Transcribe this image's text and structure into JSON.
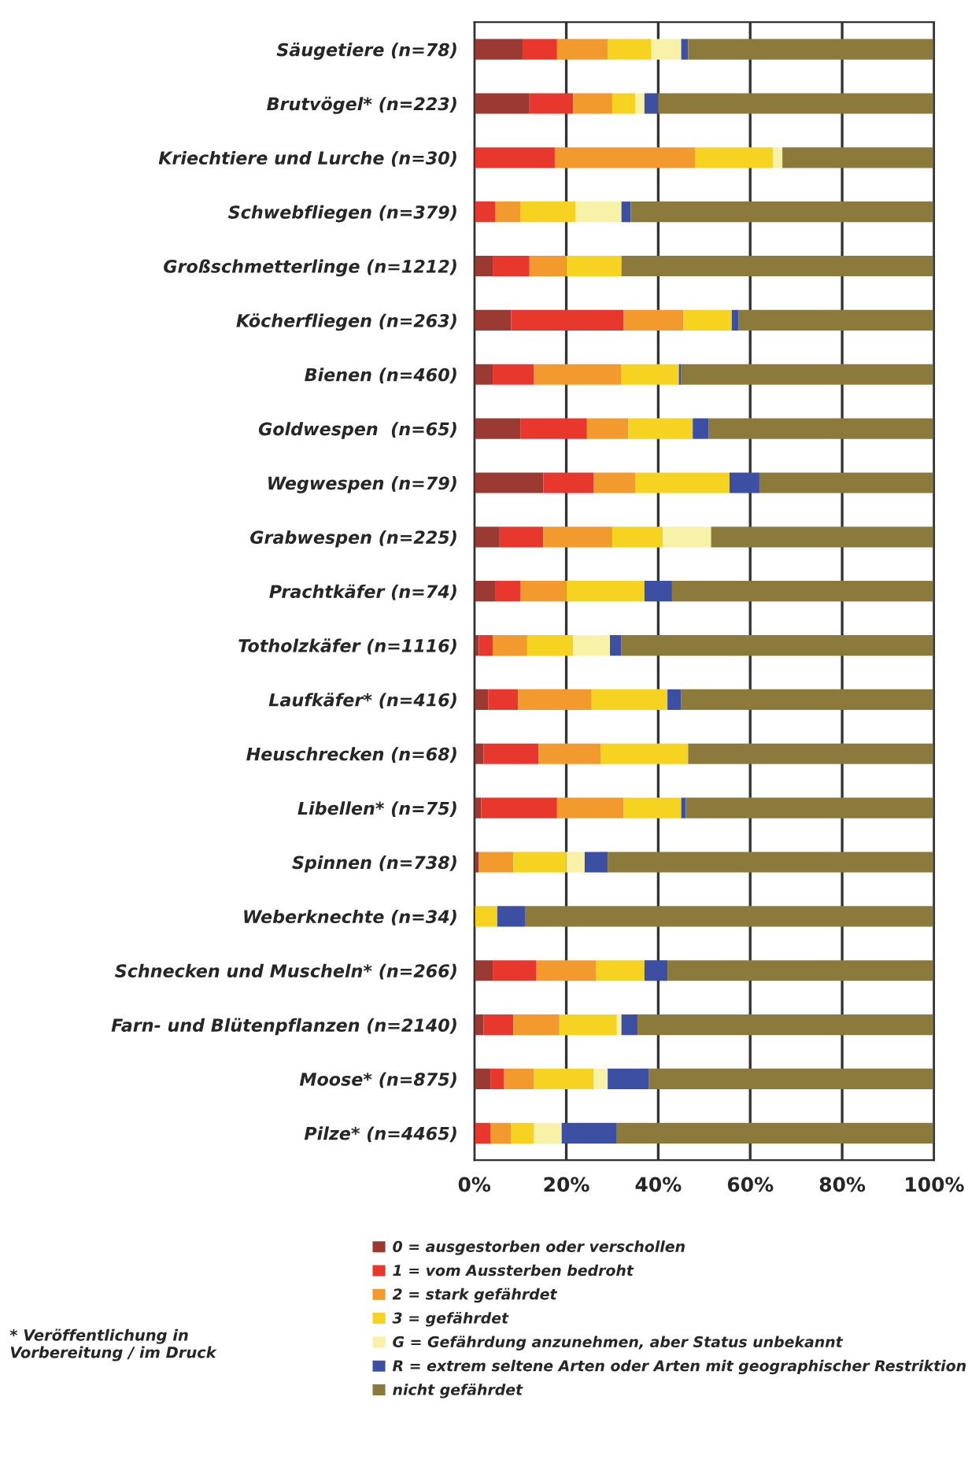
{
  "chart_data": {
    "type": "bar",
    "orientation": "horizontal",
    "stacked": true,
    "categories": [
      "Säugetiere (n=78)",
      "Brutvögel* (n=223)",
      "Kriechtiere und Lurche (n=30)",
      "Schwebfliegen (n=379)",
      "Großschmetterlinge (n=1212)",
      "Köcherfliegen (n=263)",
      "Bienen (n=460)",
      "Goldwespen  (n=65)",
      "Wegwespen (n=79)",
      "Grabwespen (n=225)",
      "Prachtkäfer (n=74)",
      "Totholzkäfer (n=1116)",
      "Laufkäfer* (n=416)",
      "Heuschrecken (n=68)",
      "Libellen* (n=75)",
      "Spinnen (n=738)",
      "Weberknechte (n=34)",
      "Schnecken und Muscheln* (n=266)",
      "Farn- und Blütenpflanzen (n=2140)",
      "Moose* (n=875)",
      "Pilze* (n=4465)"
    ],
    "series": [
      {
        "name": "0 = ausgestorben oder verschollen",
        "color": "#9b3a32",
        "values": [
          10.5,
          12,
          0,
          0,
          4,
          8,
          4,
          10,
          15,
          5.5,
          4.5,
          1,
          3,
          2,
          1.5,
          1,
          0,
          4,
          2,
          3.5,
          0
        ]
      },
      {
        "name": "1 = vom Aussterben bedroht",
        "color": "#e8382e",
        "values": [
          7.5,
          9.5,
          17.5,
          4.5,
          8,
          24.5,
          9,
          14.5,
          11,
          9.5,
          5.5,
          3,
          6.5,
          12,
          16.5,
          0,
          0,
          9.5,
          6.5,
          3,
          3.5
        ]
      },
      {
        "name": "2 = stark gefährdet",
        "color": "#f39a2e",
        "values": [
          11,
          8.5,
          30.5,
          5.5,
          8,
          13,
          19,
          9,
          9,
          15,
          10,
          7.5,
          16,
          13.5,
          14.5,
          7.5,
          0,
          13,
          10,
          6.5,
          4.5
        ]
      },
      {
        "name": "3 = gefährdet",
        "color": "#f5d320",
        "values": [
          9.5,
          5,
          17,
          12,
          12,
          10.5,
          12.5,
          14,
          20.5,
          11,
          17,
          10,
          16.5,
          19,
          12.5,
          11.5,
          5,
          10.5,
          12.5,
          13,
          5
        ]
      },
      {
        "name": "G = Gefährdung anzunehmen, aber Status unbekannt",
        "color": "#f8f2a8",
        "values": [
          6.5,
          2,
          2,
          10,
          0,
          0,
          0,
          0,
          0,
          10.5,
          0,
          8,
          0,
          0,
          0,
          4,
          0,
          0,
          1,
          3,
          6
        ]
      },
      {
        "name": "R = extrem seltene Arten oder Arten mit geographischer Restriktion",
        "color": "#3d4fa3",
        "values": [
          1.5,
          3,
          0,
          2,
          0,
          1.5,
          0.5,
          3.5,
          6.5,
          0,
          6,
          2.5,
          3,
          0,
          1,
          5,
          6,
          5,
          3.5,
          9,
          12
        ]
      },
      {
        "name": "nicht gefährdet",
        "color": "#8c7a3c",
        "values": [
          53.5,
          60,
          33,
          66,
          68,
          42.5,
          55,
          49,
          38,
          48.5,
          57,
          68,
          55,
          53.5,
          54,
          71,
          89,
          58,
          64.5,
          62,
          69
        ]
      }
    ],
    "xlim": [
      0,
      100
    ],
    "xticks": [
      {
        "value": 0,
        "label": "0%"
      },
      {
        "value": 20,
        "label": "20%"
      },
      {
        "value": 40,
        "label": "40%"
      },
      {
        "value": 60,
        "label": "60%"
      },
      {
        "value": 80,
        "label": "80%"
      },
      {
        "value": 100,
        "label": "100%"
      }
    ],
    "grid": "x",
    "legend": "bottom",
    "annotations": [
      "* Veröffentlichung in\nVorbereitung / im Druck"
    ]
  }
}
